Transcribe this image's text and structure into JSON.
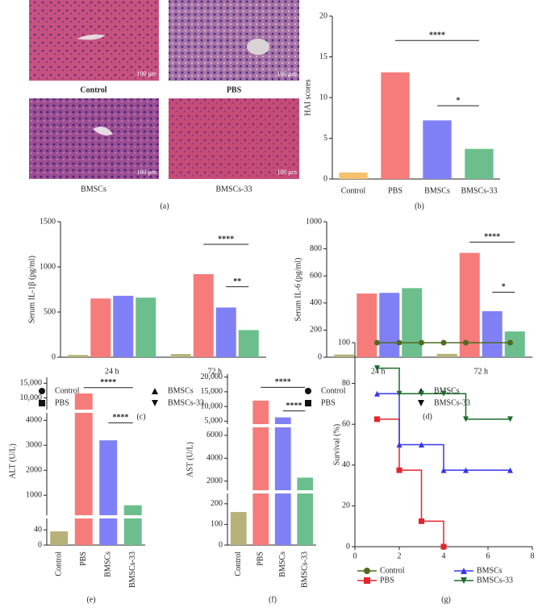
{
  "histology": {
    "panel": "(a)",
    "images": [
      {
        "label": "Control",
        "scale": "100 μm"
      },
      {
        "label": "PBS",
        "scale": "100 μm"
      },
      {
        "label": "BMSCs",
        "scale": "100 μm"
      },
      {
        "label": "BMSCs-33",
        "scale": "100 μm"
      }
    ]
  },
  "chart_data": [
    {
      "type": "bar",
      "panel": "(b)",
      "y_label": "HAI scores",
      "categories": [
        "Control",
        "PBS",
        "BMSCs",
        "BMSCs-33"
      ],
      "values": [
        0.8,
        13.1,
        7.2,
        3.7
      ],
      "colors": [
        "#f5c16e",
        "#f67b7b",
        "#8080f6",
        "#6cbf8c"
      ],
      "ylim": [
        0,
        20
      ],
      "yticks": [
        0,
        5,
        10,
        15,
        20
      ],
      "significance": [
        {
          "from": 1,
          "to": 3,
          "level": 17,
          "text": "****"
        },
        {
          "from": 2,
          "to": 3,
          "level": 9,
          "text": "*"
        }
      ]
    },
    {
      "type": "grouped-bar",
      "panel": "(c)",
      "y_label": "Serum IL-1β (pg/ml)",
      "categories": [
        "24 h",
        "72 h"
      ],
      "series": [
        {
          "name": "Control",
          "color": "#b7b27a",
          "marker": "circle",
          "values": [
            25,
            35
          ]
        },
        {
          "name": "PBS",
          "color": "#f67b7b",
          "marker": "square",
          "values": [
            650,
            920
          ]
        },
        {
          "name": "BMSCs",
          "color": "#8080f6",
          "marker": "triangle",
          "values": [
            680,
            550
          ]
        },
        {
          "name": "BMSCs-33",
          "color": "#6cbf8c",
          "marker": "triangle-down",
          "values": [
            660,
            300
          ]
        }
      ],
      "ylim": [
        0,
        1500
      ],
      "yticks": [
        0,
        500,
        1000,
        {
          "value": 1500,
          "label": "1500"
        }
      ],
      "significance": [
        {
          "group": 1,
          "from": 1,
          "to": 3,
          "level": 1250,
          "text": "****"
        },
        {
          "group": 1,
          "from": 2,
          "to": 3,
          "level": 780,
          "text": "**"
        }
      ]
    },
    {
      "type": "grouped-bar",
      "panel": "(d)",
      "y_label": "Serum IL-6 (pg/ml)",
      "categories": [
        "24 h",
        "72 h"
      ],
      "series": [
        {
          "name": "Control",
          "color": "#b7b27a",
          "marker": "circle",
          "values": [
            20,
            25
          ]
        },
        {
          "name": "PBS",
          "color": "#f67b7b",
          "marker": "square",
          "values": [
            470,
            770
          ]
        },
        {
          "name": "BMSCs",
          "color": "#8080f6",
          "marker": "triangle",
          "values": [
            475,
            340
          ]
        },
        {
          "name": "BMSCs-33",
          "color": "#6cbf8c",
          "marker": "triangle-down",
          "values": [
            510,
            190
          ]
        }
      ],
      "ylim": [
        0,
        1000
      ],
      "yticks": [
        0,
        200,
        400,
        600,
        800,
        1000
      ],
      "significance": [
        {
          "group": 1,
          "from": 1,
          "to": 3,
          "level": 850,
          "text": "****"
        },
        {
          "group": 1,
          "from": 2,
          "to": 3,
          "level": 480,
          "text": "*"
        }
      ]
    },
    {
      "type": "bar",
      "panel": "(e)",
      "y_label": "ALT (U/L)",
      "categories": [
        "Control",
        "PBS",
        "BMSCs",
        "BMSCs-33"
      ],
      "values": [
        36,
        11500,
        3200,
        600
      ],
      "colors": [
        "#b7b27a",
        "#f67b7b",
        "#8080f6",
        "#6cbf8c"
      ],
      "ysegments": [
        [
          0,
          70
        ],
        [
          200,
          4300
        ],
        [
          6000,
          17000
        ]
      ],
      "yticks": [
        [
          0,
          40
        ],
        [
          1000,
          2000,
          3000,
          4000
        ],
        [
          {
            "value": 10000,
            "label": "10,000"
          },
          {
            "value": 15000,
            "label": "15,000"
          }
        ]
      ],
      "significance": [
        {
          "from": 1,
          "to": 3,
          "level": 13500,
          "text": "****"
        },
        {
          "from": 2,
          "to": 3,
          "level": 3900,
          "text": "****"
        }
      ]
    },
    {
      "type": "bar",
      "panel": "(f)",
      "y_label": "AST (U/L)",
      "categories": [
        "Control",
        "PBS",
        "BMSCs",
        "BMSCs-33"
      ],
      "values": [
        160,
        12000,
        6300,
        2300
      ],
      "colors": [
        "#b7b27a",
        "#f67b7b",
        "#8080f6",
        "#6cbf8c"
      ],
      "ysegments": [
        [
          0,
          250
        ],
        [
          1200,
          6700
        ],
        [
          4000,
          21000
        ]
      ],
      "yticks": [
        [
          0,
          100,
          200
        ],
        [
          2000,
          4000,
          6000
        ],
        [
          {
            "value": 5000,
            "label": "5,000"
          },
          {
            "value": 10000,
            "label": "10,000"
          },
          {
            "value": 15000,
            "label": "15,000"
          },
          {
            "value": 20000,
            "label": "20,000"
          }
        ]
      ],
      "significance": [
        {
          "from": 1,
          "to": 3,
          "level": 16500,
          "text": "****"
        },
        {
          "from": 2,
          "to": 3,
          "level": 8500,
          "text": "****"
        }
      ]
    },
    {
      "type": "step",
      "panel": "(g)",
      "y_label": "Survival (%)",
      "x": [
        1,
        2,
        3,
        4,
        5,
        7
      ],
      "series": [
        {
          "name": "Control",
          "color": "#4f6b1f",
          "marker": "circle",
          "values": [
            100,
            100,
            100,
            100,
            100,
            100
          ]
        },
        {
          "name": "PBS",
          "color": "#e8232b",
          "marker": "square",
          "values": [
            62.5,
            37.5,
            12.5,
            0,
            null,
            null
          ]
        },
        {
          "name": "BMSCs",
          "color": "#3535f0",
          "marker": "triangle",
          "values": [
            75,
            50,
            50,
            37.5,
            37.5,
            37.5
          ]
        },
        {
          "name": "BMSCs-33",
          "color": "#1c6a2c",
          "marker": "triangle-down",
          "values": [
            87.5,
            75,
            75,
            75,
            62.5,
            62.5
          ]
        }
      ],
      "xlim": [
        0,
        8
      ],
      "xticks": [
        0,
        2,
        4,
        6,
        8
      ],
      "ylim": [
        0,
        100
      ],
      "yticks": [
        0,
        20,
        40,
        60,
        80,
        100
      ]
    }
  ]
}
